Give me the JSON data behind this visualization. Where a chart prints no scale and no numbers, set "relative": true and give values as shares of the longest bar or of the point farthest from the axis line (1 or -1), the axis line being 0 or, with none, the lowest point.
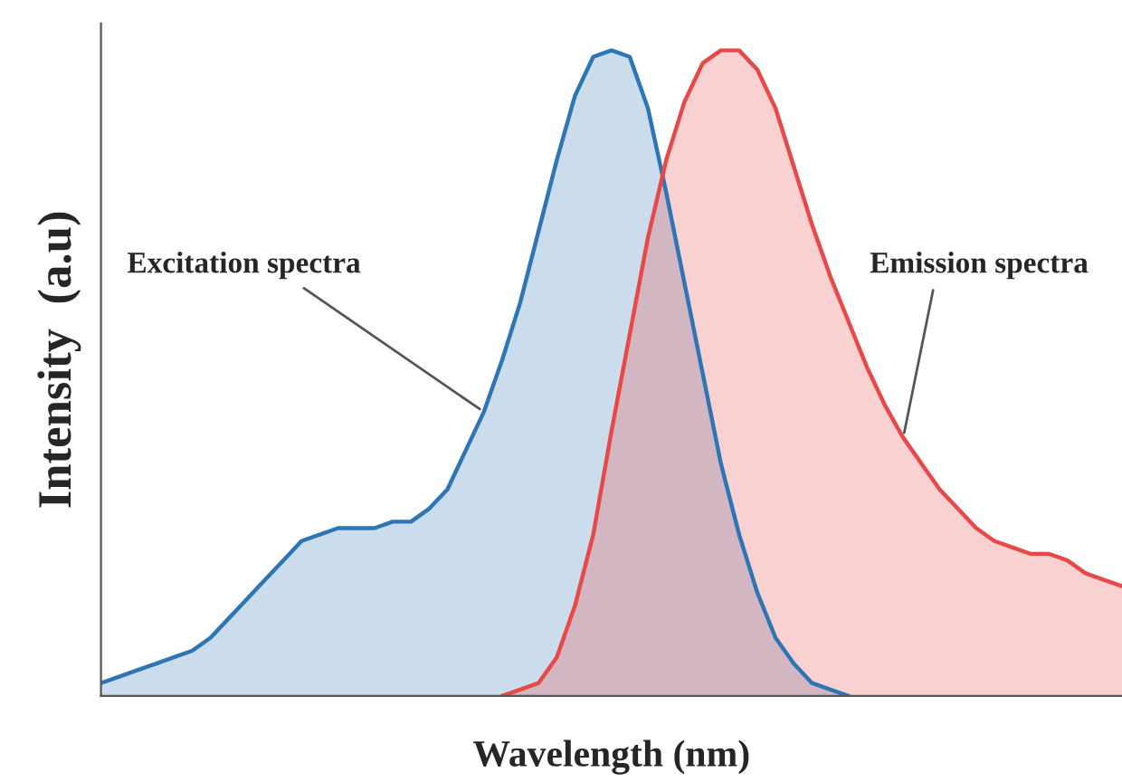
{
  "chart_data": {
    "type": "area",
    "relative": true,
    "xlabel": "Wavelength (nm)",
    "ylabel": "Intensity  (a.u)",
    "categories": [
      null,
      null,
      null,
      null,
      null,
      null,
      null,
      null,
      null,
      null,
      null,
      null,
      null,
      null,
      null,
      null,
      null,
      null,
      null,
      null,
      null,
      null,
      null,
      null,
      null,
      null,
      null,
      null,
      null,
      null,
      null,
      null,
      null,
      null,
      null,
      null,
      null,
      null,
      null,
      null,
      null,
      null,
      null,
      null,
      null,
      null,
      null,
      null,
      null,
      null,
      null,
      null,
      null,
      null,
      null,
      null,
      null
    ],
    "series": [
      {
        "color": "#2e75b6",
        "values": [
          0.02,
          0.03,
          0.04,
          0.05,
          0.06,
          0.07,
          0.09,
          0.12,
          0.15,
          0.18,
          0.21,
          0.24,
          0.25,
          0.26,
          0.26,
          0.26,
          0.27,
          0.27,
          0.29,
          0.32,
          0.38,
          0.44,
          0.52,
          0.61,
          0.72,
          0.83,
          0.93,
          0.99,
          1.0,
          0.99,
          0.91,
          0.78,
          0.64,
          0.5,
          0.36,
          0.25,
          0.16,
          0.09,
          0.05,
          0.02,
          0.01,
          0,
          null,
          null,
          null,
          null,
          null,
          null,
          null,
          null,
          null,
          null,
          null,
          null,
          null,
          null,
          null
        ]
      },
      {
        "color": "#e84848",
        "values": [
          null,
          null,
          null,
          null,
          null,
          null,
          null,
          null,
          null,
          null,
          null,
          null,
          null,
          null,
          null,
          null,
          null,
          null,
          null,
          null,
          null,
          null,
          0,
          0.01,
          0.02,
          0.06,
          0.14,
          0.25,
          0.41,
          0.56,
          0.71,
          0.83,
          0.92,
          0.98,
          1.0,
          1.0,
          0.97,
          0.91,
          0.82,
          0.73,
          0.65,
          0.58,
          0.51,
          0.45,
          0.4,
          0.36,
          0.32,
          0.29,
          0.26,
          0.24,
          0.23,
          0.22,
          0.22,
          0.21,
          0.19,
          0.18,
          0.17
        ]
      }
    ],
    "annotations": [
      "Excitation spectra",
      "Emission spectra"
    ],
    "grid": false,
    "legend": false
  }
}
